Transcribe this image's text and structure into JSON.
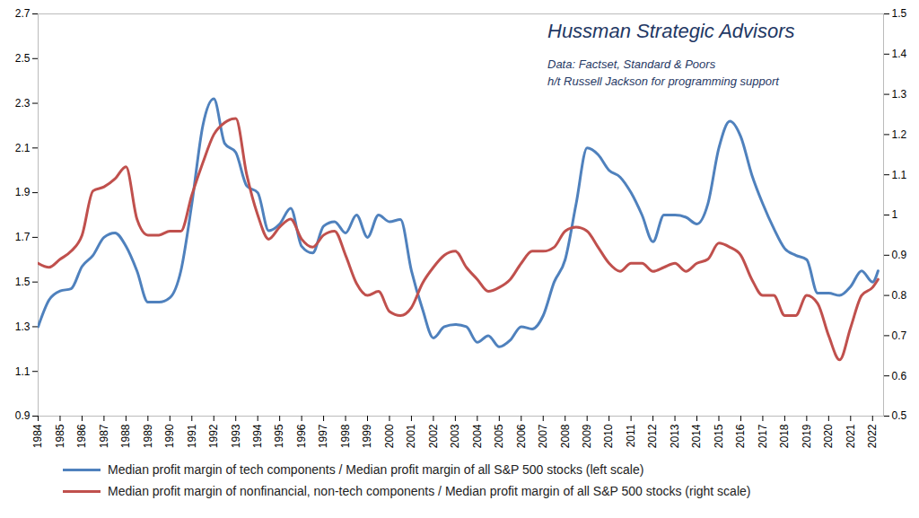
{
  "chart_data": {
    "type": "line",
    "title": "Hussman Strategic Advisors",
    "annotations": [
      "Data: Factset, Standard & Poors",
      "h/t Russell Jackson for programming support"
    ],
    "x": [
      1984,
      1984.5,
      1985,
      1985.5,
      1986,
      1986.5,
      1987,
      1987.5,
      1988,
      1988.5,
      1989,
      1989.5,
      1990,
      1990.5,
      1991,
      1991.5,
      1992,
      1992.5,
      1993,
      1993.5,
      1994,
      1994.5,
      1995,
      1995.5,
      1996,
      1996.5,
      1997,
      1997.5,
      1998,
      1998.5,
      1999,
      1999.5,
      2000,
      2000.5,
      2001,
      2001.5,
      2002,
      2002.5,
      2003,
      2003.5,
      2004,
      2004.5,
      2005,
      2005.5,
      2006,
      2006.5,
      2007,
      2007.5,
      2008,
      2008.5,
      2009,
      2009.5,
      2010,
      2010.5,
      2011,
      2011.5,
      2012,
      2012.5,
      2013,
      2013.5,
      2014,
      2014.5,
      2015,
      2015.5,
      2016,
      2016.5,
      2017,
      2017.5,
      2018,
      2018.5,
      2019,
      2019.5,
      2020,
      2020.5,
      2021,
      2021.5,
      2022,
      2022.25
    ],
    "xlim": [
      1984,
      2022.5
    ],
    "xticks": [
      1984,
      1985,
      1986,
      1987,
      1988,
      1989,
      1990,
      1991,
      1992,
      1993,
      1994,
      1995,
      1996,
      1997,
      1998,
      1999,
      2000,
      2001,
      2002,
      2003,
      2004,
      2005,
      2006,
      2007,
      2008,
      2009,
      2010,
      2011,
      2012,
      2013,
      2014,
      2015,
      2016,
      2017,
      2018,
      2019,
      2020,
      2021,
      2022
    ],
    "ylim": [
      0.9,
      2.7
    ],
    "yticks": [
      0.9,
      1.1,
      1.3,
      1.5,
      1.7,
      1.9,
      2.1,
      2.3,
      2.5,
      2.7
    ],
    "y2lim": [
      0.5,
      1.5
    ],
    "y2ticks": [
      0.5,
      0.6,
      0.7,
      0.8,
      0.9,
      1,
      1.1,
      1.2,
      1.3,
      1.4,
      1.5
    ],
    "grid": false,
    "legend": "bottom",
    "series": [
      {
        "name": "Median profit margin of tech components / Median profit margin of all S&P 500 stocks (left scale)",
        "color": "#4f81bd",
        "axis": "y",
        "values": [
          1.3,
          1.42,
          1.46,
          1.47,
          1.57,
          1.62,
          1.7,
          1.72,
          1.66,
          1.55,
          1.41,
          1.41,
          1.43,
          1.55,
          1.85,
          2.2,
          2.32,
          2.12,
          2.08,
          1.93,
          1.9,
          1.73,
          1.76,
          1.83,
          1.66,
          1.63,
          1.75,
          1.77,
          1.72,
          1.8,
          1.7,
          1.8,
          1.77,
          1.78,
          1.55,
          1.38,
          1.25,
          1.3,
          1.31,
          1.3,
          1.23,
          1.26,
          1.21,
          1.24,
          1.3,
          1.29,
          1.35,
          1.5,
          1.6,
          1.85,
          2.1,
          2.07,
          2.0,
          1.97,
          1.9,
          1.8,
          1.68,
          1.8,
          1.8,
          1.79,
          1.76,
          1.85,
          2.1,
          2.22,
          2.15,
          1.98,
          1.85,
          1.74,
          1.65,
          1.62,
          1.6,
          1.45,
          1.45,
          1.44,
          1.48,
          1.55,
          1.5,
          1.55
        ]
      },
      {
        "name": "Median profit margin of nonfinancial, non-tech components / Median profit margin of all S&P 500 stocks (right scale)",
        "color": "#c0504d",
        "axis": "y2",
        "values": [
          0.88,
          0.87,
          0.89,
          0.91,
          0.95,
          1.06,
          1.07,
          1.09,
          1.12,
          0.99,
          0.95,
          0.95,
          0.96,
          0.96,
          1.05,
          1.13,
          1.2,
          1.23,
          1.24,
          1.1,
          1.0,
          0.94,
          0.97,
          0.99,
          0.94,
          0.92,
          0.95,
          0.96,
          0.9,
          0.83,
          0.8,
          0.81,
          0.76,
          0.75,
          0.77,
          0.83,
          0.87,
          0.9,
          0.91,
          0.87,
          0.84,
          0.81,
          0.82,
          0.84,
          0.88,
          0.91,
          0.91,
          0.92,
          0.96,
          0.97,
          0.96,
          0.92,
          0.88,
          0.86,
          0.88,
          0.88,
          0.86,
          0.87,
          0.88,
          0.86,
          0.88,
          0.89,
          0.93,
          0.92,
          0.9,
          0.84,
          0.8,
          0.8,
          0.75,
          0.75,
          0.8,
          0.78,
          0.7,
          0.64,
          0.72,
          0.8,
          0.82,
          0.84
        ]
      }
    ]
  }
}
